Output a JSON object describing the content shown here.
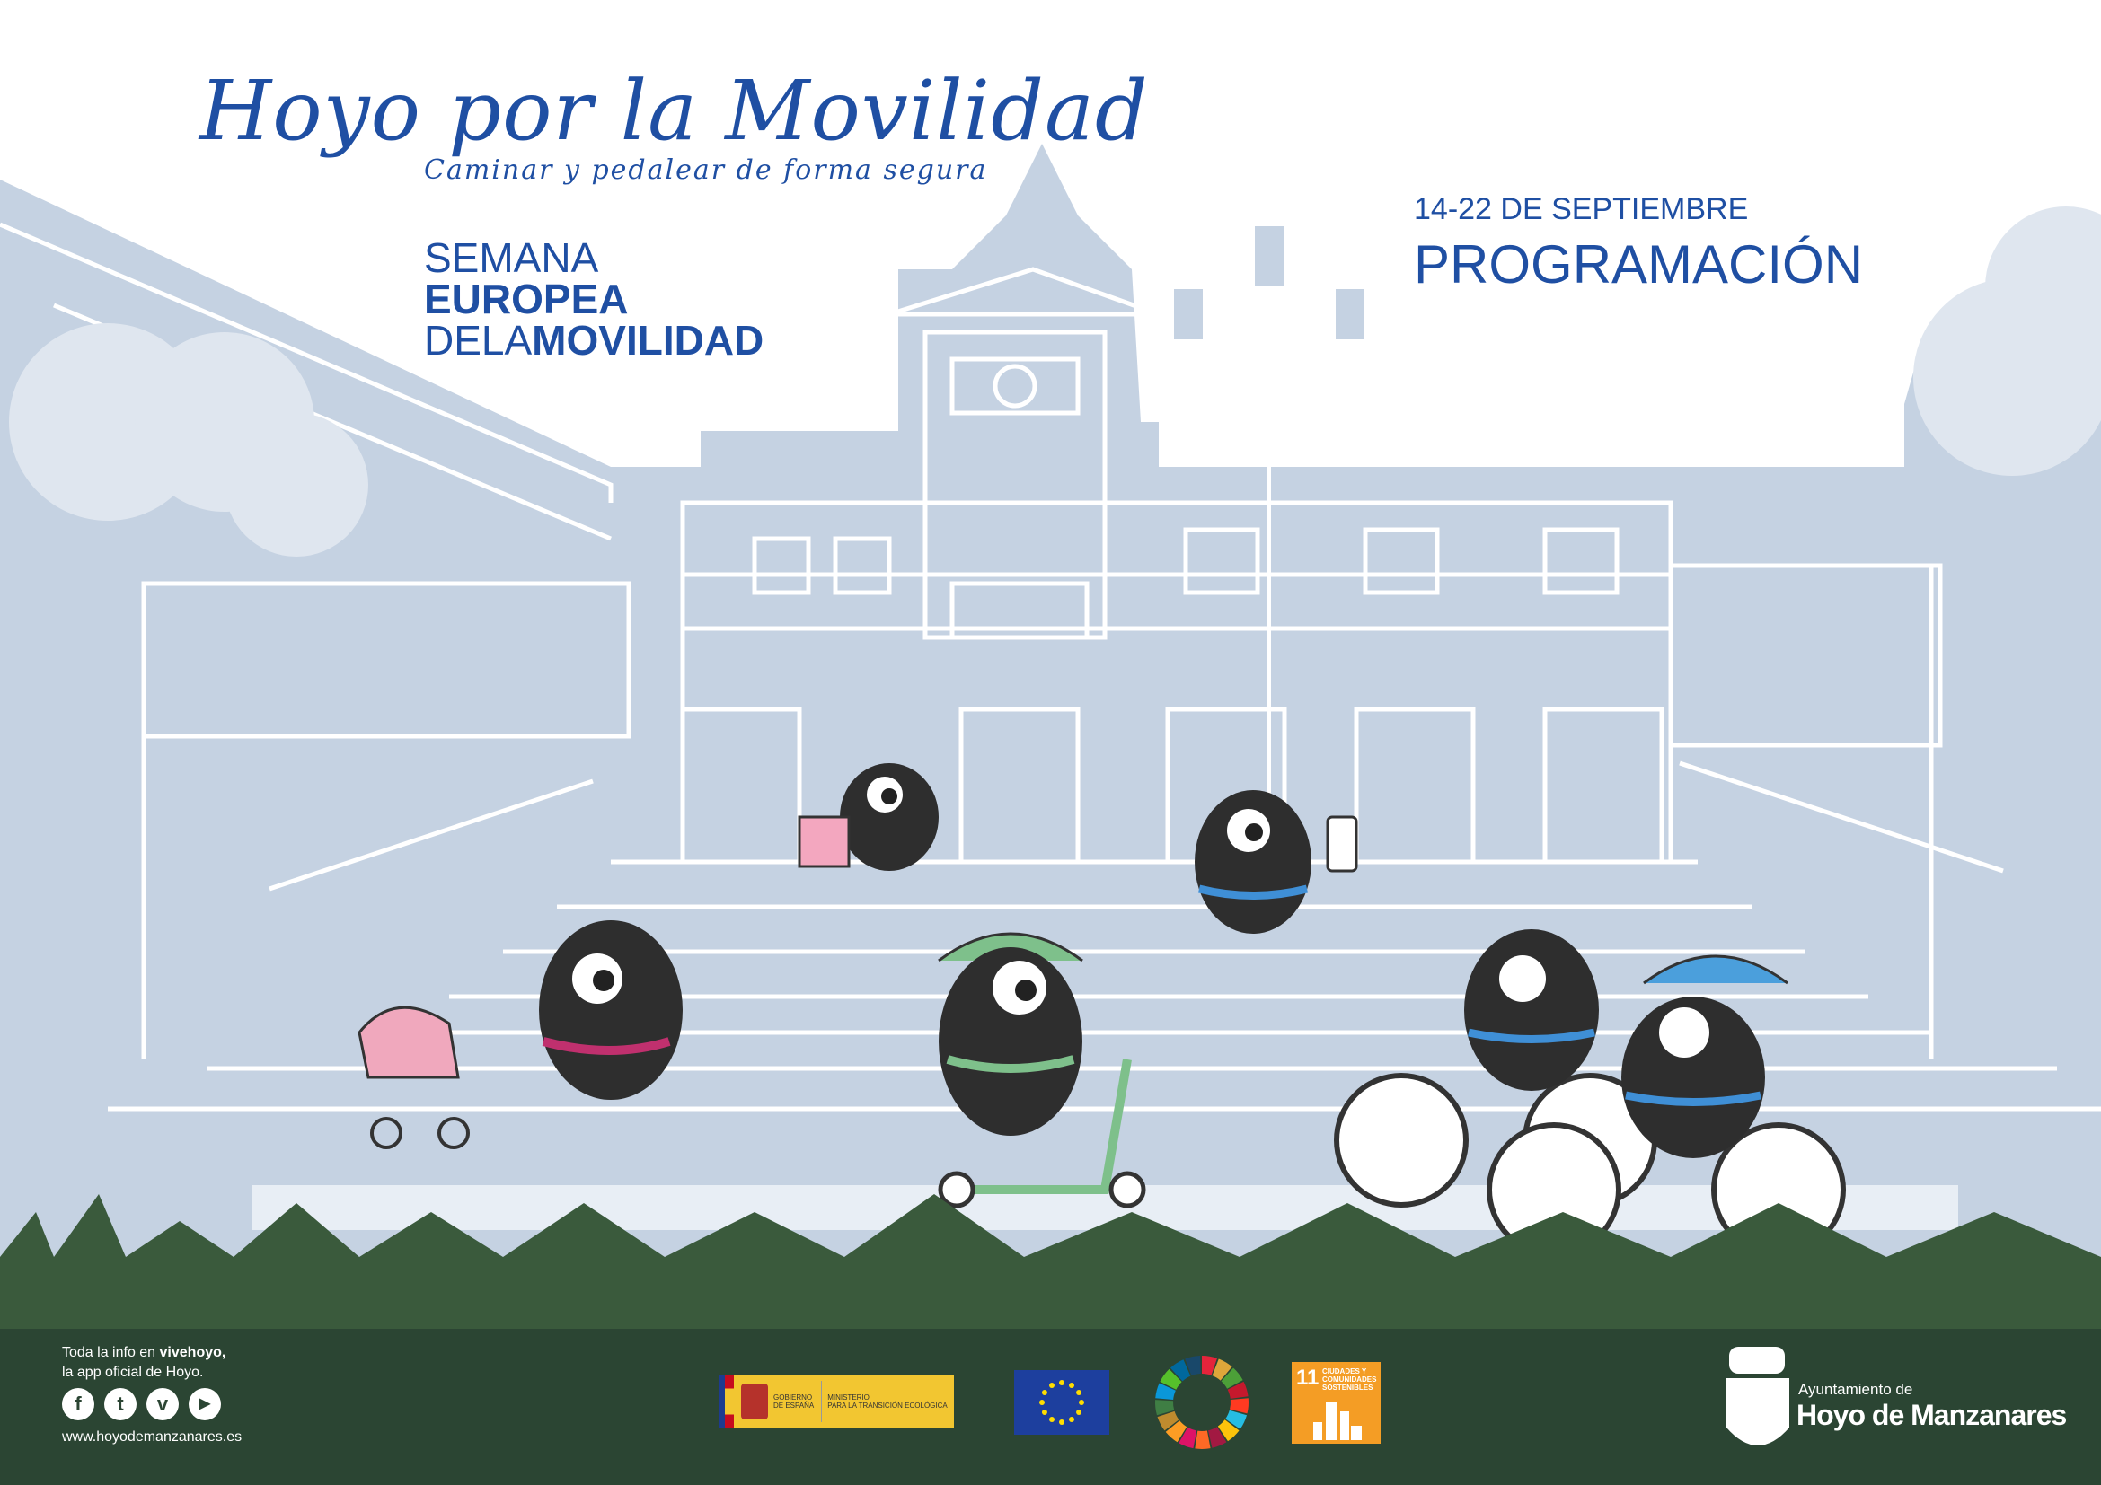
{
  "header": {
    "title": "Hoyo por la Movilidad",
    "subtitle": "Caminar y pedalear de forma segura"
  },
  "event_logo": {
    "line1": "SEMANA",
    "line2": "EUROPEA",
    "line3_light": "DELA",
    "line3_bold": "MOVILIDAD"
  },
  "dates": "14-22 DE SEPTIEMBRE",
  "programacion": "PROGRAMACIÓN",
  "footer": {
    "info_prefix": "Toda la info en ",
    "info_app": "vivehoyo,",
    "info_line2": "la app oficial de Hoyo.",
    "social": [
      {
        "icon": "facebook-icon",
        "glyph": "f"
      },
      {
        "icon": "twitter-icon",
        "glyph": "t"
      },
      {
        "icon": "vimeo-icon",
        "glyph": "v"
      },
      {
        "icon": "youtube-icon",
        "glyph": "▶"
      }
    ],
    "website": "www.hoyodemanzanares.es",
    "spain_logo": {
      "line1": "GOBIERNO",
      "line2": "DE ESPAÑA",
      "ministry1": "MINISTERIO",
      "ministry2": "PARA LA TRANSICIÓN ECOLÓGICA"
    },
    "sdg11": {
      "number": "11",
      "label1": "CIUDADES Y",
      "label2": "COMUNIDADES",
      "label3": "SOSTENIBLES"
    },
    "council": {
      "line1": "Ayuntamiento de",
      "line2": "Hoyo de Manzanares"
    }
  },
  "colors": {
    "brand_blue": "#1f4fa3",
    "building_bg": "#c5d2e2",
    "footer_green": "#2b4533",
    "grass": "#3a5a3c"
  }
}
